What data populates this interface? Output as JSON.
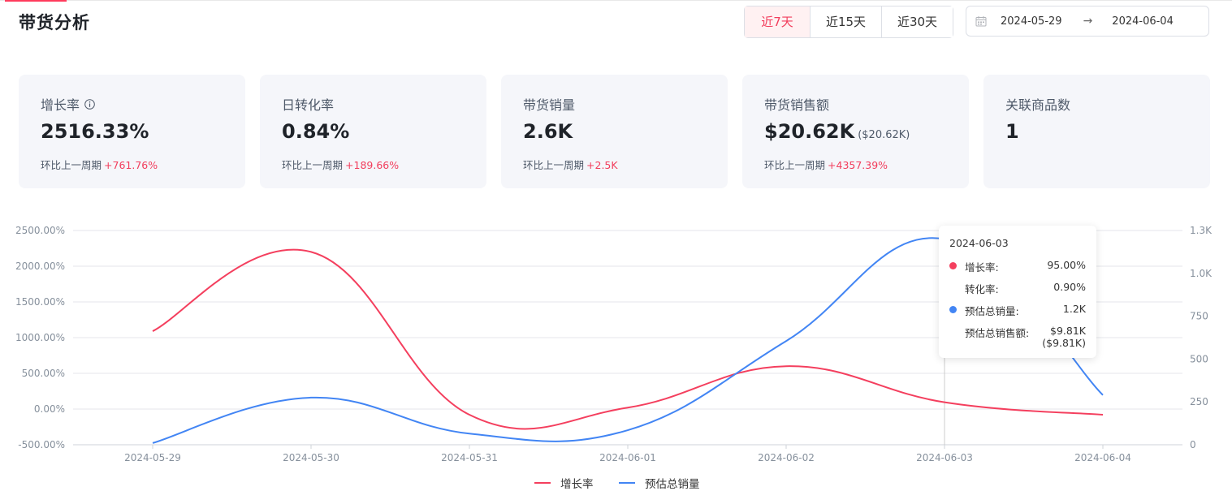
{
  "header": {
    "title": "带货分析"
  },
  "range_tabs": [
    {
      "label": "近7天",
      "active": true
    },
    {
      "label": "近15天",
      "active": false
    },
    {
      "label": "近30天",
      "active": false
    }
  ],
  "date_range": {
    "start": "2024-05-29",
    "arrow": "→",
    "end": "2024-06-04"
  },
  "cards": [
    {
      "label": "增长率",
      "value": "2516.33%",
      "compare_label": "环比上一周期",
      "compare_value": "+761.76%"
    },
    {
      "label": "日转化率",
      "value": "0.84%",
      "compare_label": "环比上一周期",
      "compare_value": "+189.66%"
    },
    {
      "label": "带货销量",
      "value": "2.6K",
      "compare_label": "环比上一周期",
      "compare_value": "+2.5K"
    },
    {
      "label": "带货销售额",
      "value": "$20.62K",
      "value_sub": "($20.62K)",
      "compare_label": "环比上一周期",
      "compare_value": "+4357.39%"
    },
    {
      "label": "关联商品数",
      "value": "1"
    }
  ],
  "colors": {
    "accent": "#f23d5c",
    "growth_line": "#f43f5e",
    "sales_line": "#4285f4"
  },
  "chart_data": {
    "type": "line",
    "x": [
      "2024-05-29",
      "2024-05-30",
      "2024-05-31",
      "2024-06-01",
      "2024-06-02",
      "2024-06-03",
      "2024-06-04"
    ],
    "y_left_ticks": [
      "2500.00%",
      "2000.00%",
      "1500.00%",
      "1000.00%",
      "500.00%",
      "0.00%",
      "-500.00%"
    ],
    "y_left_range": [
      -500,
      2500
    ],
    "y_right_ticks": [
      "1.3K",
      "1.0K",
      "750",
      "500",
      "250",
      "0"
    ],
    "y_right_range": [
      0,
      1250
    ],
    "grid": true,
    "legend_position": "bottom-center",
    "series": [
      {
        "name": "增长率",
        "axis": "left",
        "values": [
          1090,
          2200,
          -80,
          20,
          600,
          95,
          -80
        ]
      },
      {
        "name": "预估总销量",
        "axis": "right",
        "values": [
          10,
          275,
          65,
          85,
          605,
          1200,
          290
        ]
      }
    ],
    "tooltip": {
      "date": "2024-06-03",
      "rows": [
        {
          "name": "增长率:",
          "value": "95.00%",
          "dot": true
        },
        {
          "name": "转化率:",
          "value": "0.90%",
          "dot": false
        },
        {
          "name": "预估总销量:",
          "value": "1.2K",
          "dot": true
        },
        {
          "name": "预估总销售额:",
          "value": "$9.81K",
          "value_sub": "($9.81K)",
          "dot": false
        }
      ]
    }
  }
}
